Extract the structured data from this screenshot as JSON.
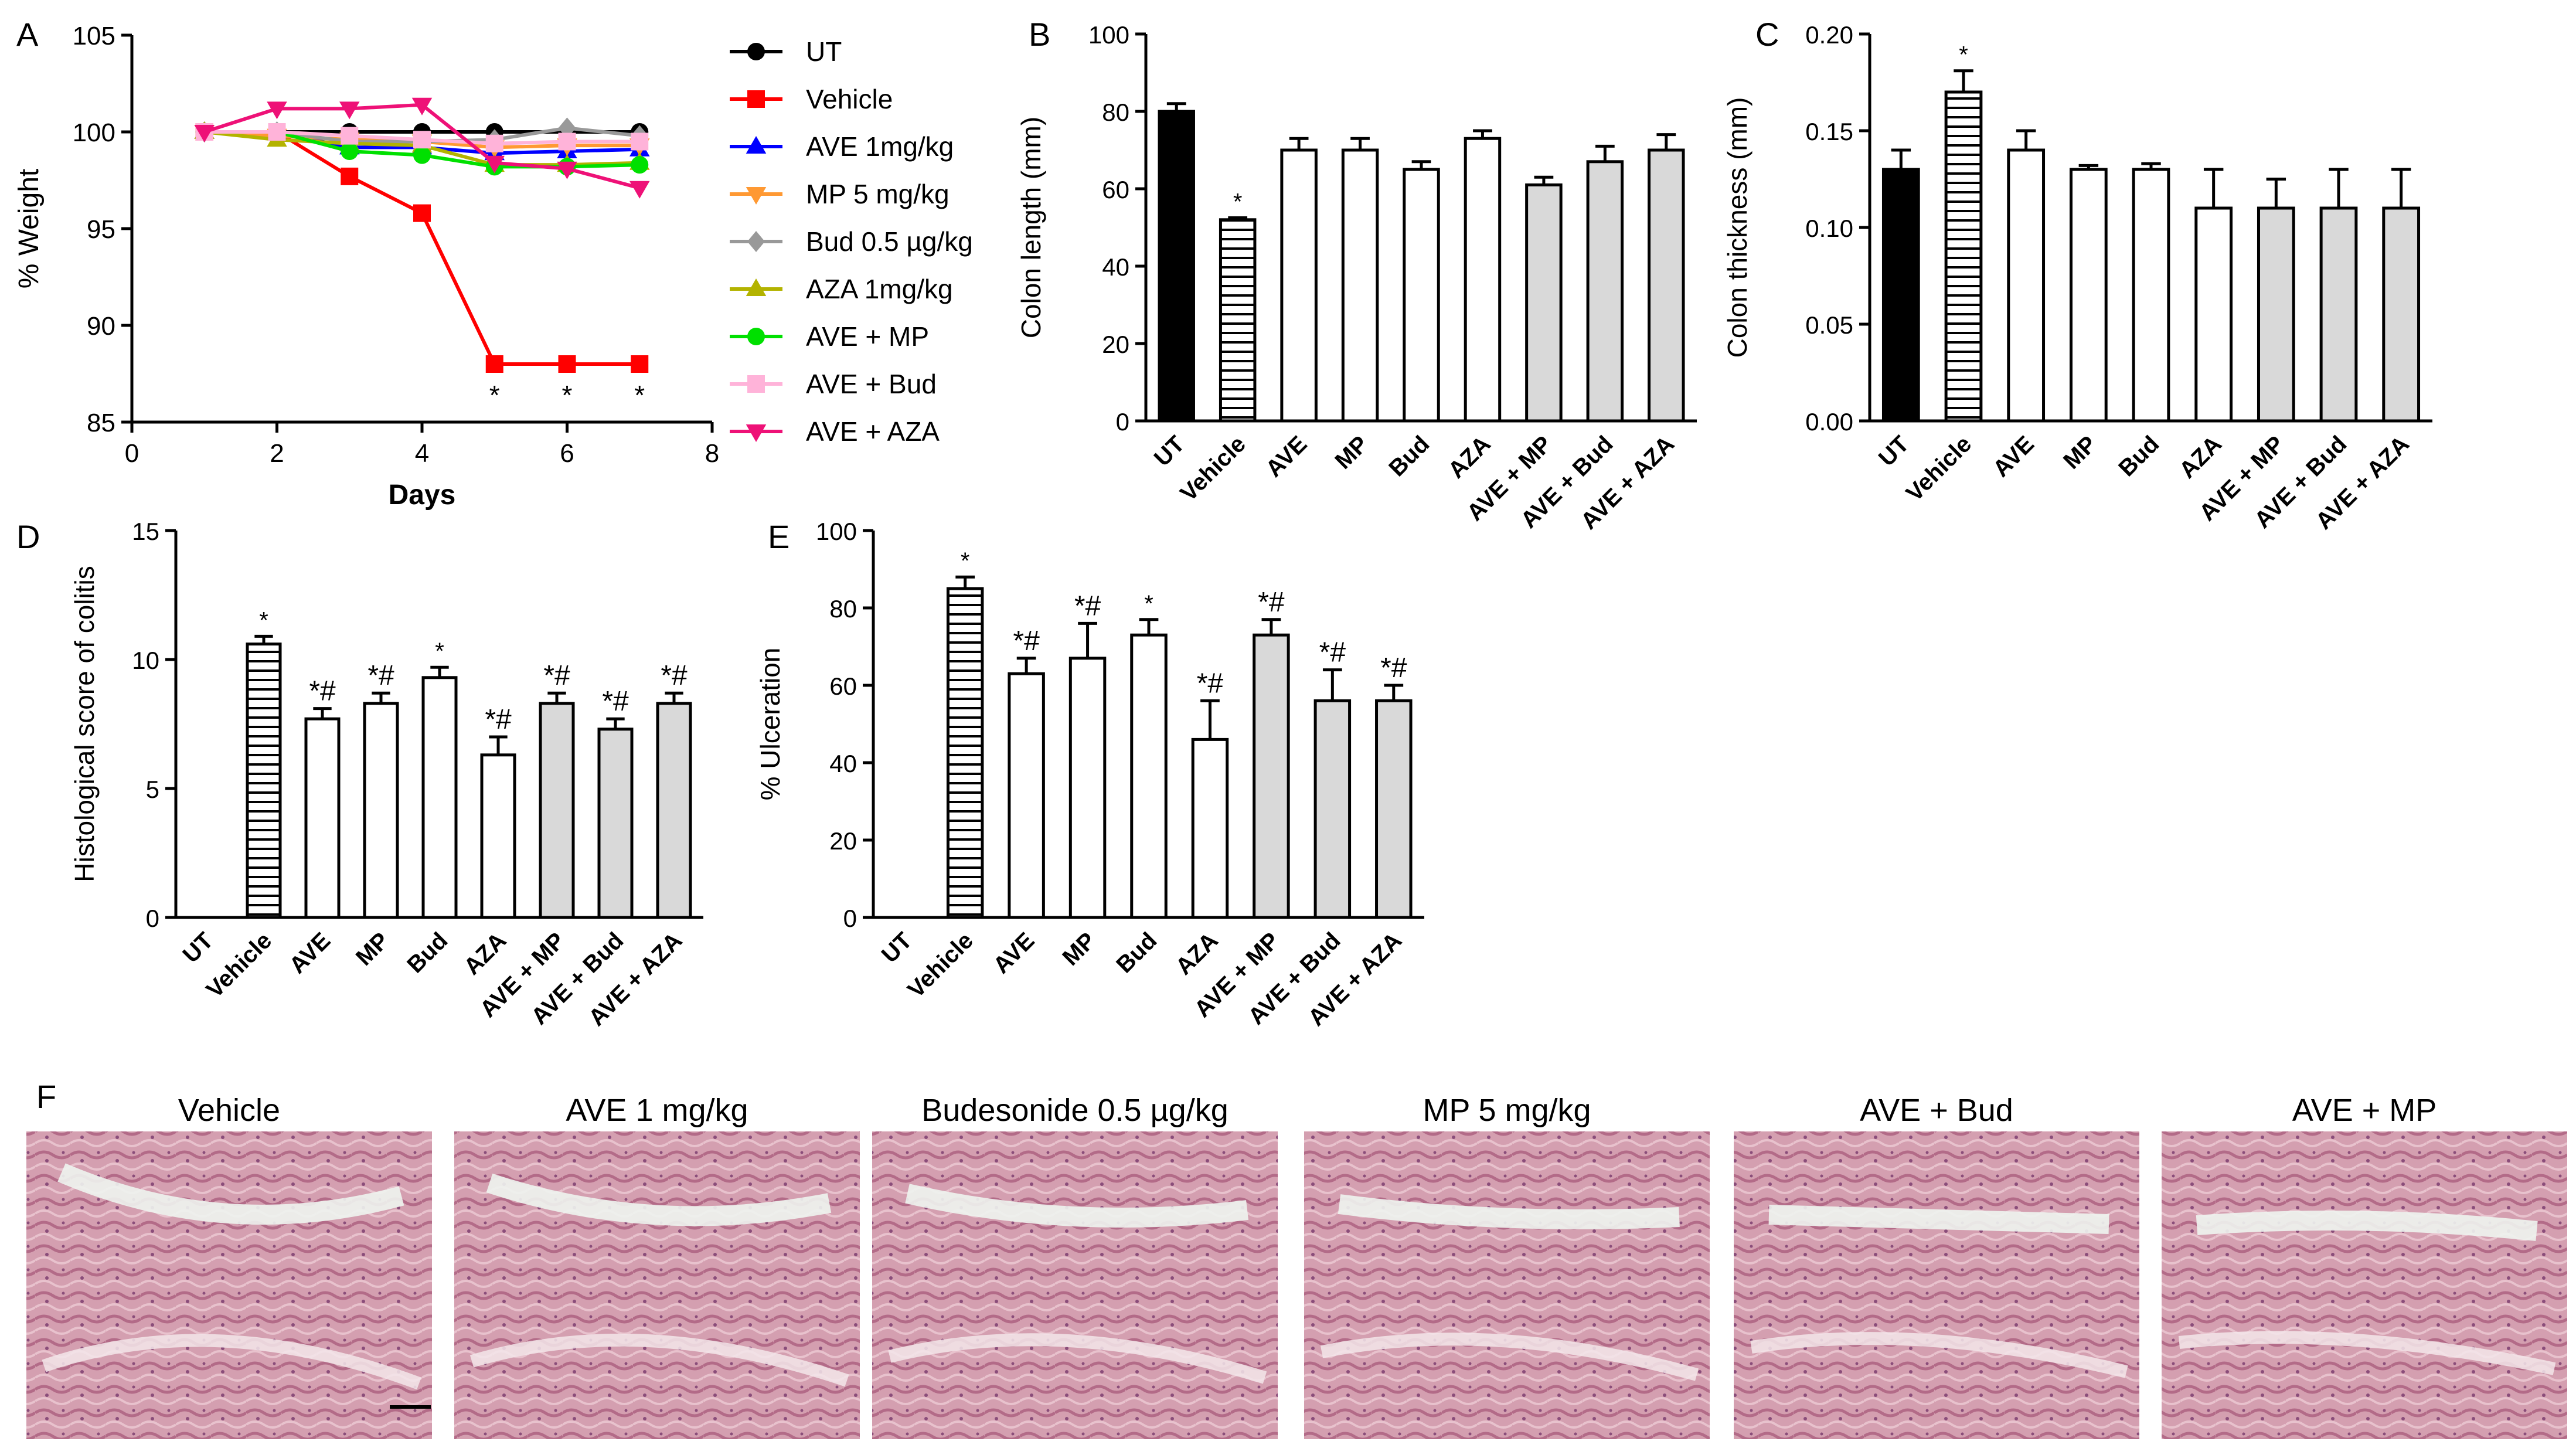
{
  "colors": {
    "vehicle_line": "#ff0000",
    "ave_line": "#0000ff",
    "mp_line": "#ff9933",
    "bud_line": "#999999",
    "aza_line": "#b3b300",
    "ave_mp_line": "#00e000",
    "ave_bud_line": "#ffb3d9",
    "ave_aza_line": "#ee1177",
    "combo_bar": "#d9d9d9"
  },
  "chart_data": [
    {
      "panel": "A",
      "type": "line",
      "xlabel": "Days",
      "ylabel": "% Weight",
      "xlim": [
        0,
        8
      ],
      "ylim": [
        85,
        105
      ],
      "xticks": [
        "0",
        "2",
        "4",
        "6",
        "8"
      ],
      "yticks": [
        "85",
        "90",
        "95",
        "100",
        "105"
      ],
      "series": [
        {
          "name": "UT",
          "x": [
            1,
            2,
            3,
            4,
            5,
            6,
            7
          ],
          "y": [
            100,
            100,
            100,
            100,
            100,
            100,
            100
          ]
        },
        {
          "name": "Vehicle",
          "x": [
            1,
            2,
            3,
            4,
            5,
            6,
            7
          ],
          "y": [
            100,
            100,
            97.7,
            95.8,
            88,
            88,
            88
          ]
        },
        {
          "name": "AVE 1mg/kg",
          "x": [
            1,
            2,
            3,
            4,
            5,
            6,
            7
          ],
          "y": [
            100,
            100,
            99.2,
            99.2,
            98.9,
            99,
            99.1
          ]
        },
        {
          "name": "MP 5 mg/kg",
          "x": [
            1,
            2,
            3,
            4,
            5,
            6,
            7
          ],
          "y": [
            100,
            99.8,
            99.6,
            99.5,
            99.2,
            99.3,
            99.3
          ]
        },
        {
          "name": "Bud 0.5 µg/kg",
          "x": [
            1,
            2,
            3,
            4,
            5,
            6,
            7
          ],
          "y": [
            100,
            100,
            99.5,
            99.5,
            99.6,
            100.2,
            99.8
          ]
        },
        {
          "name": "AZA 1mg/kg",
          "x": [
            1,
            2,
            3,
            4,
            5,
            6,
            7
          ],
          "y": [
            100,
            99.6,
            99.4,
            99.3,
            98.3,
            98.3,
            98.4
          ]
        },
        {
          "name": "AVE + MP",
          "x": [
            1,
            2,
            3,
            4,
            5,
            6,
            7
          ],
          "y": [
            100,
            100,
            99,
            98.8,
            98.2,
            98.2,
            98.3
          ]
        },
        {
          "name": "AVE + Bud",
          "x": [
            1,
            2,
            3,
            4,
            5,
            6,
            7
          ],
          "y": [
            100,
            100,
            99.8,
            99.6,
            99.4,
            99.5,
            99.5
          ]
        },
        {
          "name": "AVE + AZA",
          "x": [
            1,
            2,
            3,
            4,
            5,
            6,
            7
          ],
          "y": [
            100,
            101.2,
            101.2,
            101.4,
            98.4,
            98.1,
            97.1
          ]
        }
      ],
      "annotations": [
        {
          "x": 5,
          "text": "*"
        },
        {
          "x": 6,
          "text": "*"
        },
        {
          "x": 7,
          "text": "*"
        }
      ]
    },
    {
      "panel": "B",
      "type": "bar",
      "ylabel": "Colon length (mm)",
      "ylim": [
        0,
        100
      ],
      "yticks": [
        "0",
        "20",
        "40",
        "60",
        "80",
        "100"
      ],
      "categories": [
        "UT",
        "Vehicle",
        "AVE",
        "MP",
        "Bud",
        "AZA",
        "AVE + MP",
        "AVE + Bud",
        "AVE + AZA"
      ],
      "values": [
        80,
        52,
        70,
        70,
        65,
        73,
        61,
        67,
        70
      ],
      "errors": [
        2,
        0.5,
        3,
        3,
        2,
        2,
        2,
        4,
        4
      ],
      "marks": [
        "",
        "*",
        "",
        "",
        "",
        "",
        "",
        "",
        ""
      ]
    },
    {
      "panel": "C",
      "type": "bar",
      "ylabel": "Colon thickness (mm)",
      "ylim": [
        0,
        0.2
      ],
      "yticks": [
        "0.00",
        "0.05",
        "0.10",
        "0.15",
        "0.20"
      ],
      "categories": [
        "UT",
        "Vehicle",
        "AVE",
        "MP",
        "Bud",
        "AZA",
        "AVE + MP",
        "AVE + Bud",
        "AVE + AZA"
      ],
      "values": [
        0.13,
        0.17,
        0.14,
        0.13,
        0.13,
        0.11,
        0.11,
        0.11,
        0.11
      ],
      "errors": [
        0.01,
        0.011,
        0.01,
        0.002,
        0.003,
        0.02,
        0.015,
        0.02,
        0.02
      ],
      "marks": [
        "",
        "*",
        "",
        "",
        "",
        "",
        "",
        "",
        ""
      ]
    },
    {
      "panel": "D",
      "type": "bar",
      "ylabel": "Histological score of colitis",
      "ylim": [
        0,
        15
      ],
      "yticks": [
        "0",
        "5",
        "10",
        "15"
      ],
      "categories": [
        "UT",
        "Vehicle",
        "AVE",
        "MP",
        "Bud",
        "AZA",
        "AVE + MP",
        "AVE + Bud",
        "AVE + AZA"
      ],
      "values": [
        0,
        10.6,
        7.7,
        8.3,
        9.3,
        6.3,
        8.3,
        7.3,
        8.3
      ],
      "errors": [
        0,
        0.3,
        0.4,
        0.4,
        0.4,
        0.7,
        0.4,
        0.4,
        0.4
      ],
      "marks": [
        "",
        "*",
        "*#",
        "*#",
        "*",
        "*#",
        "*#",
        "*#",
        "*#"
      ]
    },
    {
      "panel": "E",
      "type": "bar",
      "ylabel": "% Ulceration",
      "ylim": [
        0,
        100
      ],
      "yticks": [
        "0",
        "20",
        "40",
        "60",
        "80",
        "100"
      ],
      "categories": [
        "UT",
        "Vehicle",
        "AVE",
        "MP",
        "Bud",
        "AZA",
        "AVE + MP",
        "AVE + Bud",
        "AVE + AZA"
      ],
      "values": [
        0,
        85,
        63,
        67,
        73,
        46,
        73,
        56,
        56
      ],
      "errors": [
        0,
        3,
        4,
        9,
        4,
        10,
        4,
        8,
        4
      ],
      "marks": [
        "",
        "*",
        "*#",
        "*#",
        "*",
        "*#",
        "*#",
        "*#",
        "*#"
      ]
    }
  ],
  "panel_letters": {
    "a": "A",
    "b": "B",
    "c": "C",
    "d": "D",
    "e": "E",
    "f": "F"
  },
  "histology": {
    "labels": [
      "Vehicle",
      "AVE 1 mg/kg",
      "Budesonide  0.5 µg/kg",
      "MP 5 mg/kg",
      "AVE + Bud",
      "AVE + MP"
    ]
  }
}
